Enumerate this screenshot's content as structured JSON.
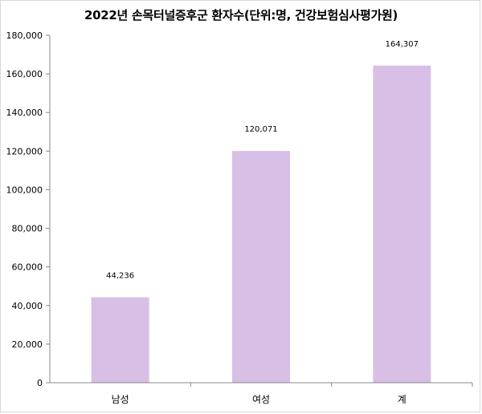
{
  "chart_data": {
    "type": "bar",
    "title": "2022년 손목터널증후군 환자수(단위:명, 건강보험심사평가원)",
    "categories": [
      "남성",
      "여성",
      "계"
    ],
    "values": [
      44236,
      120071,
      164307
    ],
    "data_labels": [
      "44,236",
      "120,071",
      "164,307"
    ],
    "ylim": [
      0,
      180000
    ],
    "yticks": [
      0,
      20000,
      40000,
      60000,
      80000,
      100000,
      120000,
      140000,
      160000,
      180000
    ],
    "ytick_labels": [
      "0",
      "20,000",
      "40,000",
      "60,000",
      "80,000",
      "100,000",
      "120,000",
      "140,000",
      "160,000",
      "180,000"
    ],
    "xlabel": "",
    "ylabel": "",
    "grid": false,
    "legend": "none",
    "bar_color": "#d8bfe6"
  }
}
